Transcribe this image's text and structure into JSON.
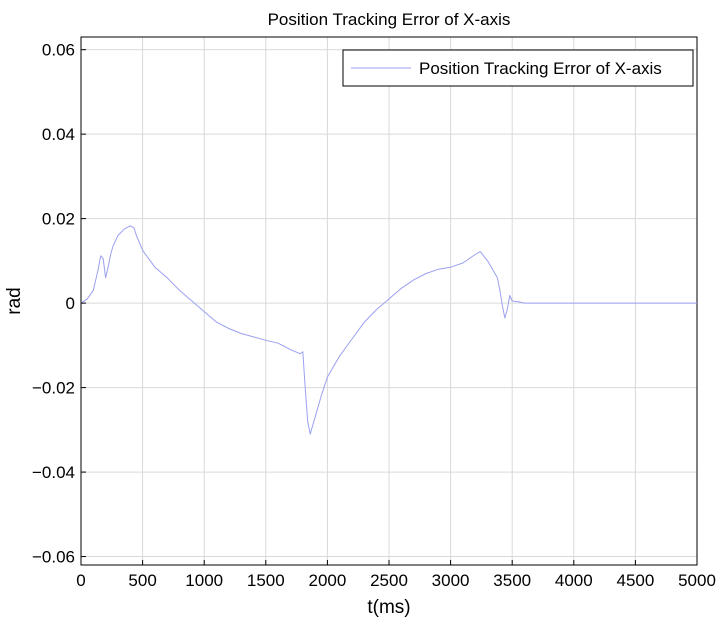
{
  "chart_data": {
    "type": "line",
    "title": "Position Tracking Error of X-axis",
    "xlabel": "t(ms)",
    "ylabel": "rad",
    "xlim": [
      0,
      5000
    ],
    "ylim": [
      -0.062,
      0.063
    ],
    "xticks": [
      0,
      500,
      1000,
      1500,
      2000,
      2500,
      3000,
      3500,
      4000,
      4500,
      5000
    ],
    "xtick_labels": [
      "0",
      "500",
      "1000",
      "1500",
      "2000",
      "2500",
      "3000",
      "3500",
      "4000",
      "4500",
      "5000"
    ],
    "yticks": [
      0.06,
      0.04,
      0.02,
      0,
      -0.02,
      -0.04,
      -0.06
    ],
    "ytick_labels": [
      "0.06",
      "0.04",
      "0.02",
      "0",
      "−0.02",
      "−0.04",
      "−0.06"
    ],
    "grid": true,
    "legend_position": "top-right",
    "series_color": "#9aa0f0",
    "series": [
      {
        "name": "Position Tracking Error of X-axis",
        "x": [
          0,
          50,
          100,
          140,
          160,
          180,
          200,
          220,
          240,
          260,
          300,
          350,
          400,
          430,
          450,
          500,
          600,
          700,
          800,
          900,
          1000,
          1100,
          1200,
          1300,
          1400,
          1500,
          1600,
          1700,
          1780,
          1800,
          1820,
          1840,
          1860,
          1880,
          1900,
          1950,
          2000,
          2100,
          2200,
          2300,
          2400,
          2500,
          2600,
          2700,
          2800,
          2900,
          3000,
          3100,
          3200,
          3240,
          3300,
          3350,
          3380,
          3400,
          3420,
          3440,
          3460,
          3480,
          3500,
          3550,
          3600,
          3650,
          4000,
          4500,
          5000
        ],
        "y": [
          0,
          0.001,
          0.003,
          0.008,
          0.0112,
          0.0105,
          0.006,
          0.0085,
          0.0115,
          0.0135,
          0.016,
          0.0175,
          0.0183,
          0.0178,
          0.016,
          0.0125,
          0.0085,
          0.006,
          0.003,
          0.0005,
          -0.002,
          -0.0045,
          -0.006,
          -0.0072,
          -0.008,
          -0.0088,
          -0.0095,
          -0.011,
          -0.012,
          -0.0115,
          -0.02,
          -0.028,
          -0.031,
          -0.029,
          -0.027,
          -0.022,
          -0.0175,
          -0.0125,
          -0.0085,
          -0.0045,
          -0.0015,
          0.001,
          0.0035,
          0.0055,
          0.007,
          0.008,
          0.0085,
          0.0095,
          0.0115,
          0.0122,
          0.01,
          0.0075,
          0.006,
          0.003,
          -0.0005,
          -0.0035,
          -0.0015,
          0.0018,
          0.0005,
          0.0003,
          0,
          0,
          0,
          0,
          0
        ]
      }
    ]
  }
}
